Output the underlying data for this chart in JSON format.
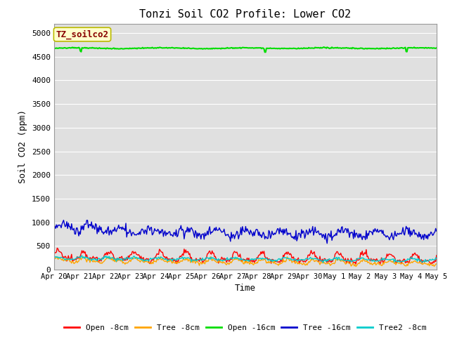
{
  "title": "Tonzi Soil CO2 Profile: Lower CO2",
  "ylabel": "Soil CO2 (ppm)",
  "xlabel": "Time",
  "legend_label": "TZ_soilco2",
  "series_order": [
    "Open -8cm",
    "Tree -8cm",
    "Open -16cm",
    "Tree -16cm",
    "Tree2 -8cm"
  ],
  "series_colors": {
    "Open -8cm": "#ff0000",
    "Tree -8cm": "#ffa500",
    "Open -16cm": "#00dd00",
    "Tree -16cm": "#0000cc",
    "Tree2 -8cm": "#00cccc"
  },
  "ylim": [
    0,
    5200
  ],
  "yticks": [
    0,
    500,
    1000,
    1500,
    2000,
    2500,
    3000,
    3500,
    4000,
    4500,
    5000
  ],
  "xtick_labels": [
    "Apr 20",
    "Apr 21",
    "Apr 22",
    "Apr 23",
    "Apr 24",
    "Apr 25",
    "Apr 26",
    "Apr 27",
    "Apr 28",
    "Apr 29",
    "Apr 30",
    "May 1",
    "May 2",
    "May 3",
    "May 4",
    "May 5"
  ],
  "n_points": 480,
  "bg_color": "#e0e0e0",
  "fig_bg": "#ffffff",
  "legend_box_facecolor": "#ffffcc",
  "legend_box_edgecolor": "#bbbb00",
  "legend_text_color": "#880000",
  "grid_color": "#ffffff",
  "title_fontsize": 11,
  "axis_label_fontsize": 9,
  "tick_fontsize": 8
}
